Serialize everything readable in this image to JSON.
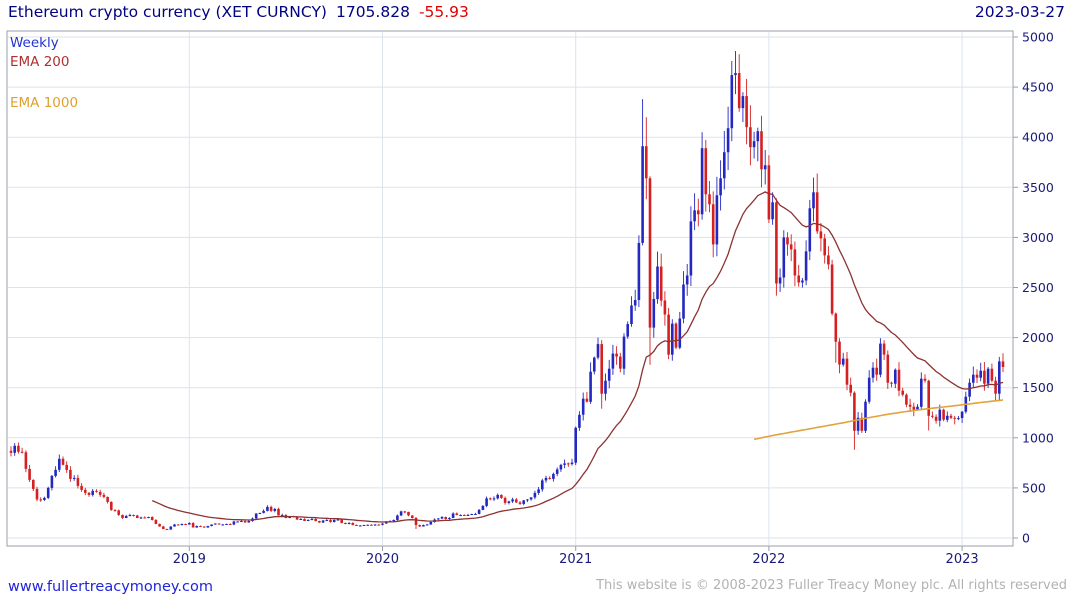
{
  "header": {
    "title": "Ethereum crypto currency  (XET CURNCY)",
    "last_price": "1705.828",
    "change": "-55.93",
    "date": "2023-03-27"
  },
  "legend": [
    {
      "label": "Weekly",
      "color": "#2233cc"
    },
    {
      "label": "EMA 200",
      "color": "#b03030"
    },
    {
      "label": "EMA 1000",
      "color": "#dfa02f"
    }
  ],
  "footer": {
    "link": "www.fullertreacymoney.com",
    "copyright": "This website is © 2008-2023 Fuller Treacy Money plc. All rights reserved"
  },
  "chart_data": {
    "type": "candlestick",
    "title": "Ethereum crypto currency (XET CURNCY)",
    "timeframe": "Weekly",
    "ylim": [
      0,
      5000
    ],
    "y_ticks": [
      0,
      500,
      1000,
      1500,
      2000,
      2500,
      3000,
      3500,
      4000,
      4500,
      5000
    ],
    "x_ticks": [
      "2019",
      "2020",
      "2021",
      "2022",
      "2023"
    ],
    "year_start_indices": {
      "2019": 48,
      "2020": 100,
      "2021": 152,
      "2022": 204,
      "2023": 256
    },
    "start_period": "2018-02",
    "first_open": 870,
    "weekly_closes": [
      850,
      920,
      860,
      855,
      690,
      580,
      490,
      385,
      380,
      400,
      500,
      620,
      680,
      790,
      730,
      680,
      590,
      600,
      520,
      480,
      450,
      430,
      470,
      460,
      430,
      410,
      360,
      280,
      275,
      230,
      200,
      220,
      230,
      225,
      200,
      205,
      200,
      210,
      180,
      140,
      115,
      90,
      85,
      115,
      135,
      130,
      140,
      135,
      150,
      105,
      120,
      115,
      105,
      120,
      135,
      145,
      135,
      135,
      140,
      135,
      165,
      165,
      170,
      155,
      170,
      195,
      245,
      250,
      270,
      310,
      270,
      290,
      225,
      230,
      200,
      220,
      210,
      185,
      190,
      170,
      180,
      190,
      170,
      155,
      175,
      180,
      160,
      180,
      185,
      150,
      140,
      150,
      130,
      125,
      125,
      130,
      132,
      128,
      134,
      132,
      145,
      165,
      170,
      180,
      225,
      265,
      260,
      225,
      200,
      130,
      115,
      130,
      135,
      160,
      185,
      195,
      210,
      190,
      200,
      245,
      230,
      230,
      225,
      230,
      240,
      240,
      280,
      320,
      395,
      390,
      395,
      430,
      400,
      350,
      365,
      385,
      355,
      340,
      375,
      385,
      405,
      450,
      485,
      575,
      600,
      590,
      640,
      685,
      730,
      745,
      737,
      752,
      1100,
      1230,
      1390,
      1360,
      1660,
      1800,
      1935,
      1440,
      1570,
      1690,
      1840,
      1810,
      1690,
      2010,
      2135,
      2320,
      2375,
      2945,
      3910,
      3590,
      2100,
      2385,
      2710,
      2370,
      2230,
      1830,
      2140,
      1900,
      2190,
      2530,
      2620,
      3160,
      3270,
      3230,
      3890,
      3430,
      3330,
      2930,
      3420,
      3590,
      3850,
      4090,
      4620,
      4640,
      4290,
      4410,
      4100,
      3900,
      3960,
      4060,
      3680,
      3720,
      3180,
      3350,
      2540,
      2600,
      3000,
      2930,
      2880,
      2620,
      2550,
      2570,
      2860,
      3290,
      3450,
      3060,
      2990,
      2820,
      2730,
      2240,
      1960,
      1730,
      1790,
      1530,
      1450,
      1070,
      1200,
      1070,
      1360,
      1600,
      1700,
      1630,
      1940,
      1830,
      1550,
      1540,
      1680,
      1470,
      1430,
      1330,
      1310,
      1280,
      1310,
      1590,
      1570,
      1220,
      1210,
      1170,
      1280,
      1180,
      1220,
      1200,
      1190,
      1197,
      1260,
      1410,
      1550,
      1630,
      1600,
      1670,
      1540,
      1690,
      1570,
      1440,
      1762,
      1705.83
    ],
    "wick_overrides": {
      "109": [
        210,
        90
      ],
      "159": [
        1975,
        1290
      ],
      "170": [
        4380,
        2920
      ],
      "171": [
        4200,
        3380
      ],
      "172": [
        3610,
        1730
      ],
      "194": [
        4760,
        3960
      ],
      "195": [
        4860,
        4430
      ],
      "222": [
        2250,
        1750
      ],
      "227": [
        1465,
        880
      ],
      "247": [
        1580,
        1073
      ],
      "265": [
        1610,
        1370
      ]
    },
    "ema200": {
      "label": "EMA 200",
      "period_weeks": 29,
      "start_index": 38,
      "color": "#8d3232"
    },
    "ema1000": {
      "label": "EMA 1000",
      "color": "#e2a33c",
      "points": [
        [
          200,
          985
        ],
        [
          206,
          1030
        ],
        [
          212,
          1070
        ],
        [
          218,
          1110
        ],
        [
          224,
          1150
        ],
        [
          230,
          1195
        ],
        [
          236,
          1235
        ],
        [
          242,
          1268
        ],
        [
          248,
          1295
        ],
        [
          254,
          1320
        ],
        [
          260,
          1348
        ],
        [
          264,
          1365
        ],
        [
          267,
          1378
        ]
      ]
    },
    "colors": {
      "up": "#2328c0",
      "down": "#d42020",
      "grid": "#dce2ee",
      "border": "#9aa0a8",
      "axis_text": "#1a1a7a"
    },
    "legend_position": "top-left",
    "grid": true,
    "y_axis_side": "right"
  }
}
